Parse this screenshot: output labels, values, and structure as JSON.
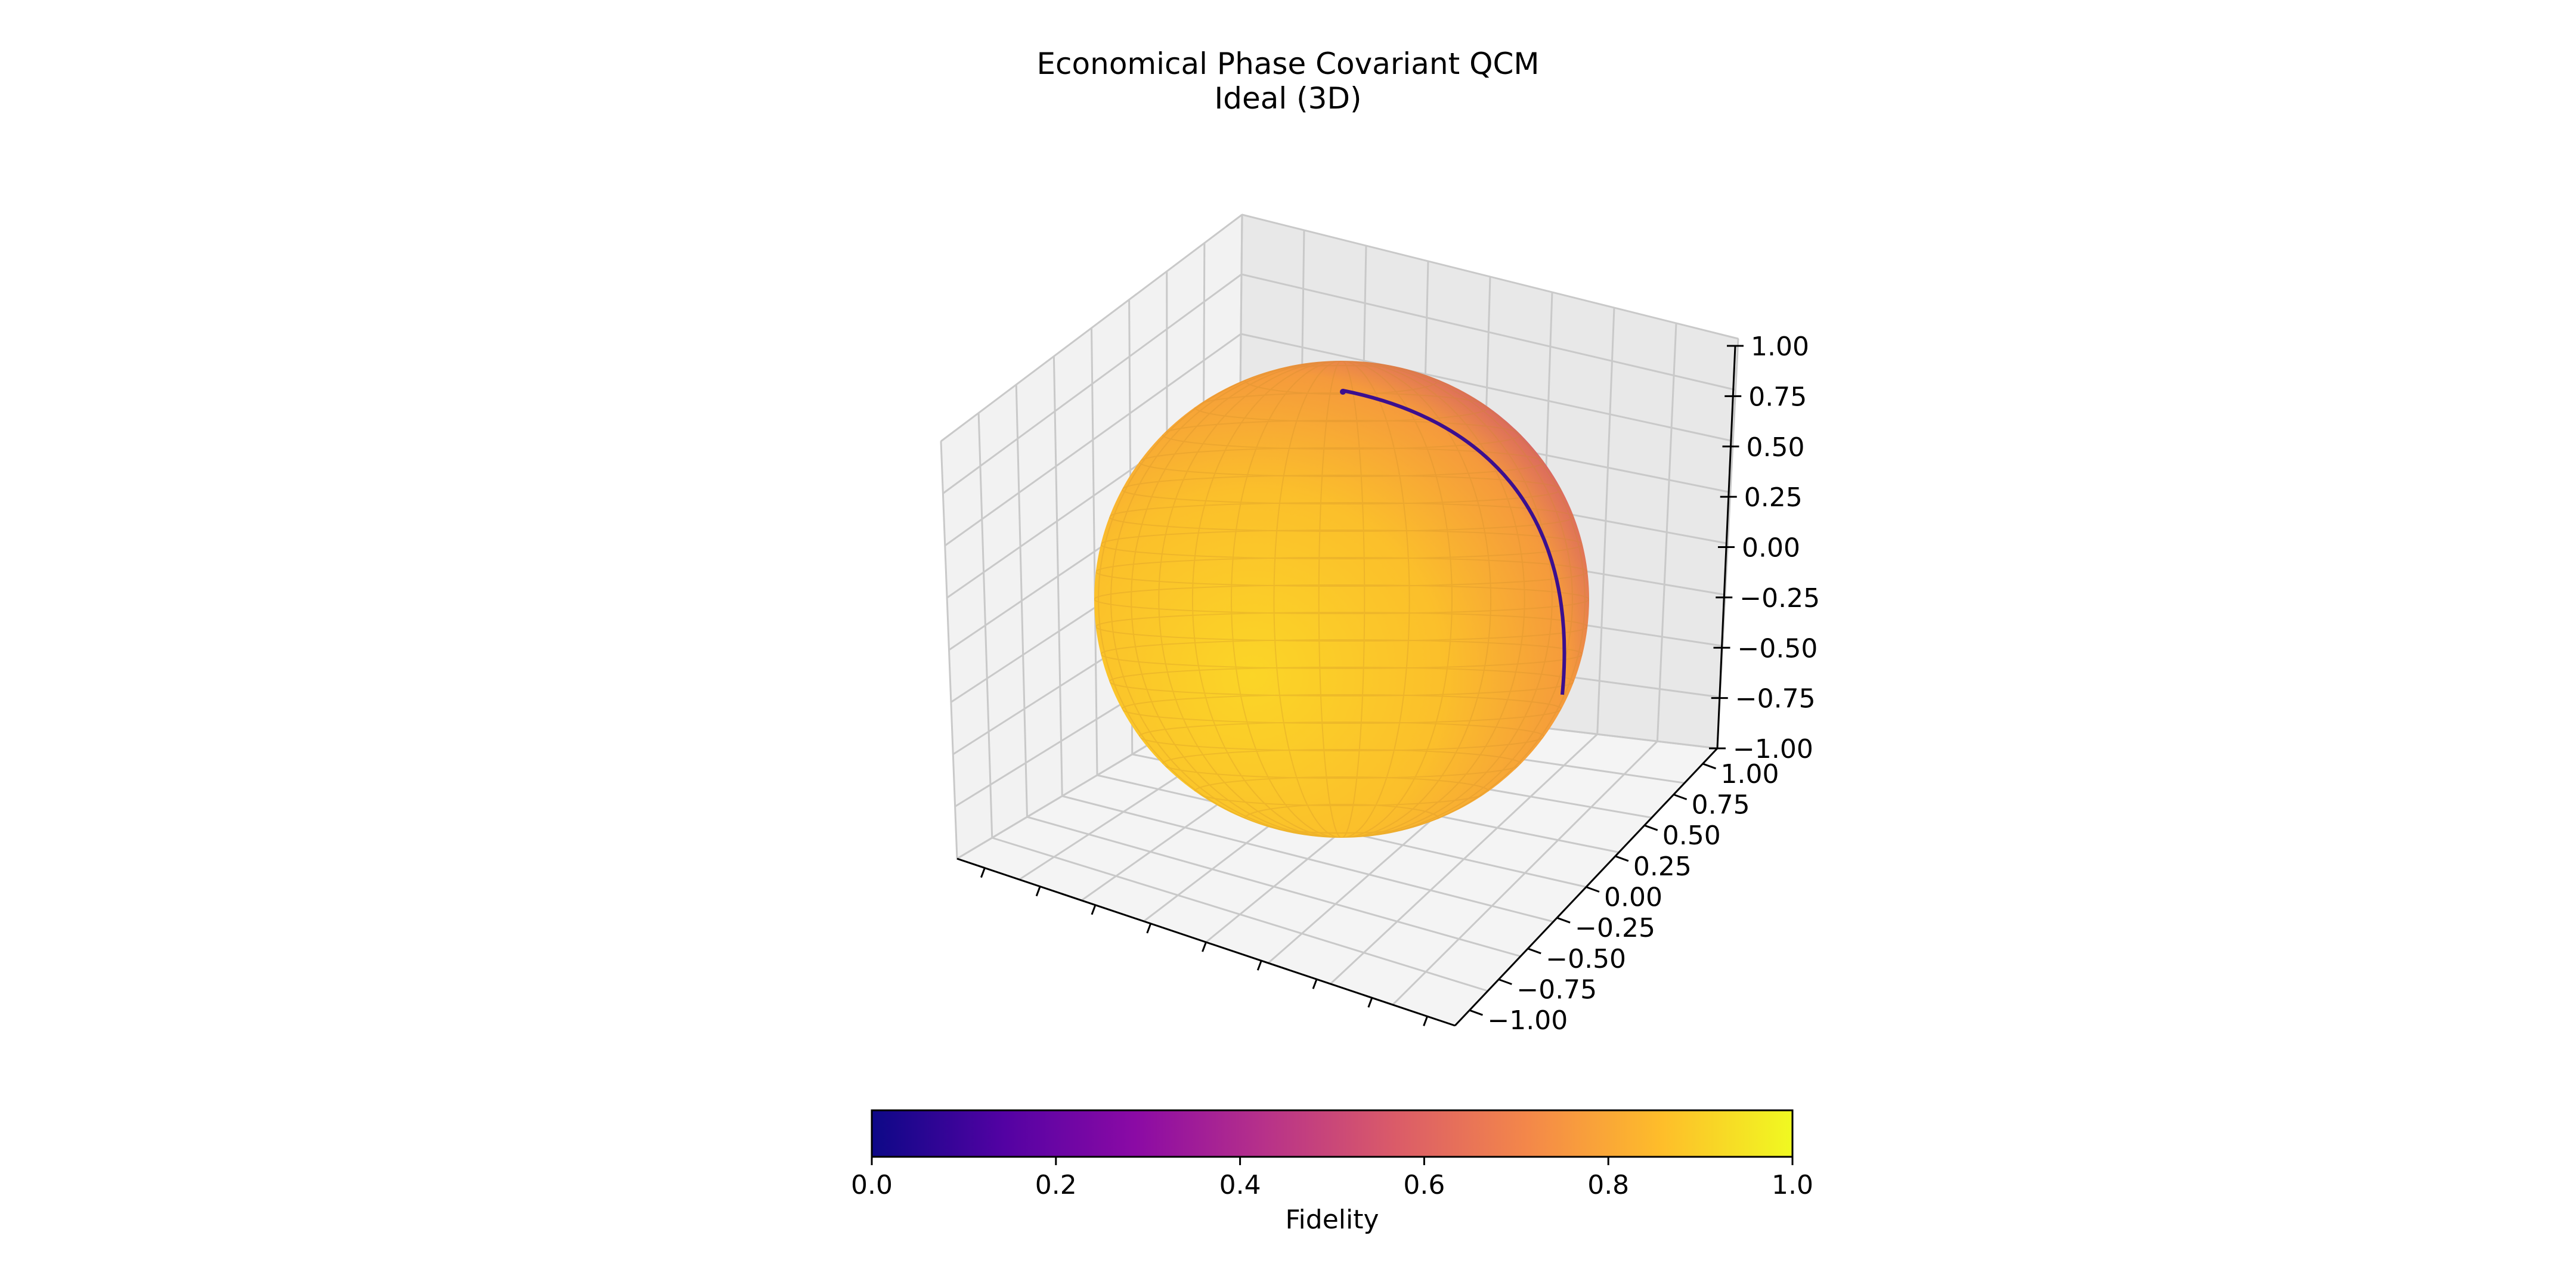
{
  "chart_data": {
    "type": "surface3d",
    "title": "Economical Phase Covariant QCM",
    "subtitle": "Ideal (3D)",
    "surface": "unit sphere (Bloch sphere) coloured by fidelity",
    "xlim": [
      -1.0,
      1.0
    ],
    "ylim": [
      -1.0,
      1.0
    ],
    "zlim": [
      -1.0,
      1.0
    ],
    "y_tick_labels": [
      "1.00",
      "0.75",
      "0.50",
      "0.25",
      "0.00",
      "−0.25",
      "−0.50",
      "−0.75",
      "−1.00"
    ],
    "z_tick_labels": [
      "1.00",
      "0.75",
      "0.50",
      "0.25",
      "0.00",
      "−0.25",
      "−0.50",
      "−0.75",
      "−1.00"
    ],
    "x_tick_labels": [],
    "grid": true,
    "colormap": "plasma",
    "colorbar": {
      "label": "Fidelity",
      "orientation": "horizontal",
      "placement": "bottom",
      "range": [
        0.0,
        1.0
      ],
      "ticks": [
        "0.0",
        "0.2",
        "0.4",
        "0.6",
        "0.8",
        "1.0"
      ],
      "colors": [
        "#0d0887",
        "#5302a3",
        "#8b0aa5",
        "#b83289",
        "#db5c68",
        "#f48849",
        "#febd2a",
        "#f0f921"
      ]
    },
    "fidelity_observed": {
      "front_hemisphere": 1.0,
      "rim_toward_right": 0.75,
      "right_edge": 0.45,
      "meridian_line": 0.05
    }
  }
}
